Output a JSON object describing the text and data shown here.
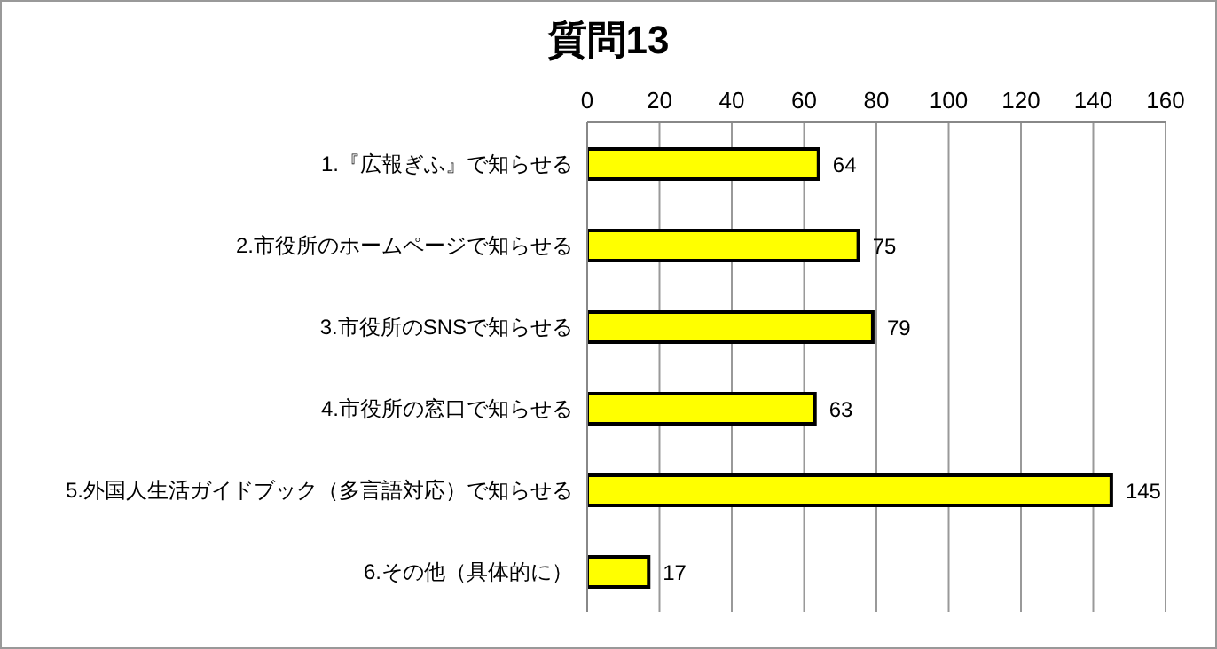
{
  "chart_data": {
    "type": "bar",
    "title": "質問13",
    "orientation": "horizontal",
    "categories": [
      "1.『広報ぎふ』で知らせる",
      "2.市役所のホームページで知らせる",
      "3.市役所のSNSで知らせる",
      "4.市役所の窓口で知らせる",
      "5.外国人生活ガイドブック（多言語対応）で知らせる",
      "6.その他（具体的に）"
    ],
    "values": [
      64,
      75,
      79,
      63,
      145,
      17
    ],
    "color": "#ffff00",
    "xlim": [
      0,
      160
    ],
    "xticks": [
      0,
      20,
      40,
      60,
      80,
      100,
      120,
      140,
      160
    ],
    "grid": "x",
    "data_labels": true
  }
}
